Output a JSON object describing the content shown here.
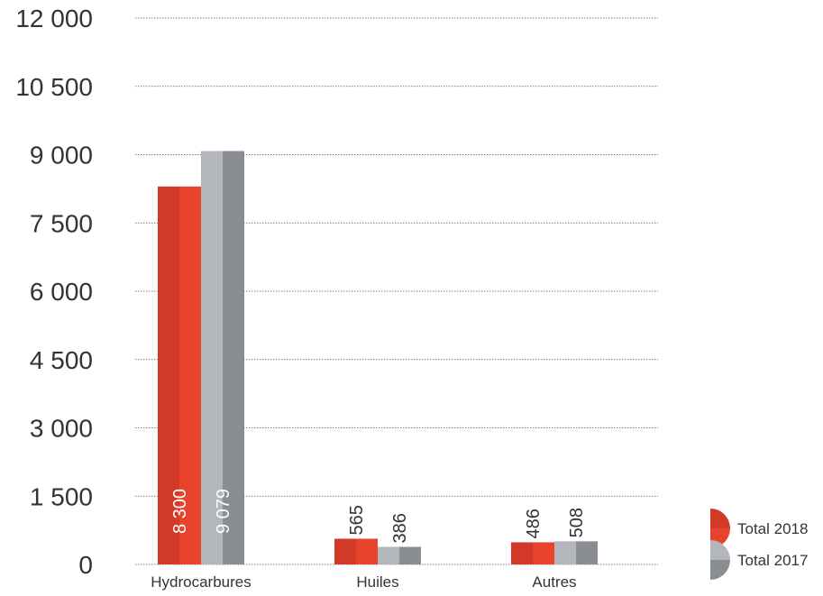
{
  "chart_data": {
    "type": "bar",
    "title": "",
    "xlabel": "",
    "ylabel": "",
    "categories": [
      "Hydrocarbures",
      "Huiles",
      "Autres"
    ],
    "series": [
      {
        "name": "Total 2018",
        "values": [
          8300,
          565,
          486
        ],
        "value_labels": [
          "8 300",
          "565",
          "486"
        ],
        "color": "#e8432d",
        "color_dark": "#d03a26"
      },
      {
        "name": "Total 2017",
        "values": [
          9079,
          386,
          508
        ],
        "value_labels": [
          "9 079",
          "386",
          "508"
        ],
        "color": "#9b9ea3",
        "color_dark": "#8a8d92",
        "color_light": "#b3b6ba"
      }
    ],
    "ylim": [
      0,
      12000
    ],
    "yticks": [
      0,
      1500,
      3000,
      4500,
      6000,
      7500,
      9000,
      10500,
      12000
    ],
    "ytick_labels": [
      "0",
      "1 500",
      "3 000",
      "4 500",
      "6 000",
      "7 500",
      "9 000",
      "10 500",
      "12 000"
    ],
    "grid": true,
    "legend_position": "bottom-right"
  }
}
